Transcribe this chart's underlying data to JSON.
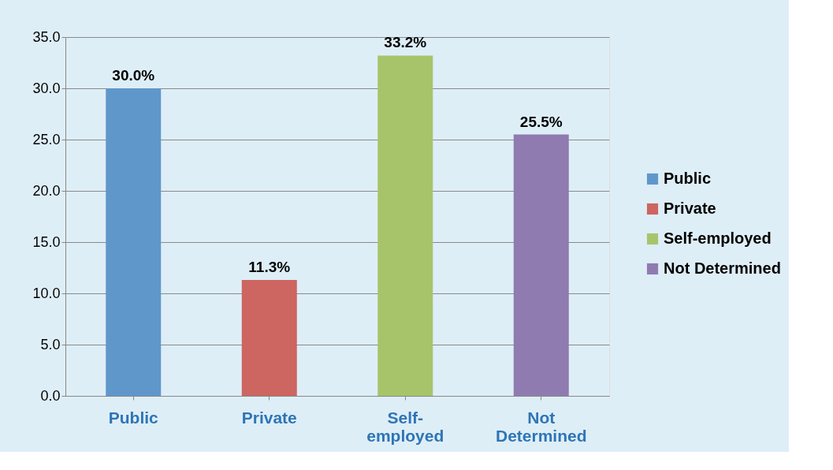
{
  "chart_data": {
    "type": "bar",
    "categories": [
      "Public",
      "Private",
      "Self-employed",
      "Not Determined"
    ],
    "series": [
      {
        "name": "Public",
        "color": "#6097cb",
        "values": [
          30.0,
          null,
          null,
          null
        ],
        "value_labels": [
          "30.0%",
          null,
          null,
          null
        ]
      },
      {
        "name": "Private",
        "color": "#cd6560",
        "values": [
          null,
          11.3,
          null,
          null
        ],
        "value_labels": [
          null,
          "11.3%",
          null,
          null
        ]
      },
      {
        "name": "Self-employed",
        "color": "#a8c46a",
        "values": [
          null,
          null,
          33.2,
          null
        ],
        "value_labels": [
          null,
          null,
          "33.2%",
          null
        ]
      },
      {
        "name": "Not Determined",
        "color": "#8f7bb0",
        "values": [
          null,
          null,
          null,
          25.5
        ],
        "value_labels": [
          null,
          null,
          null,
          "25.5%"
        ]
      }
    ],
    "ylim": [
      0,
      35
    ],
    "yticks": [
      {
        "value": 0,
        "label": "0.0"
      },
      {
        "value": 5,
        "label": "5.0"
      },
      {
        "value": 10,
        "label": "10.0"
      },
      {
        "value": 15,
        "label": "15.0"
      },
      {
        "value": 20,
        "label": "20.0"
      },
      {
        "value": 25,
        "label": "25.0"
      },
      {
        "value": 30,
        "label": "30.0"
      },
      {
        "value": 35,
        "label": "35.0"
      }
    ],
    "grid": "y",
    "legend": "right"
  }
}
